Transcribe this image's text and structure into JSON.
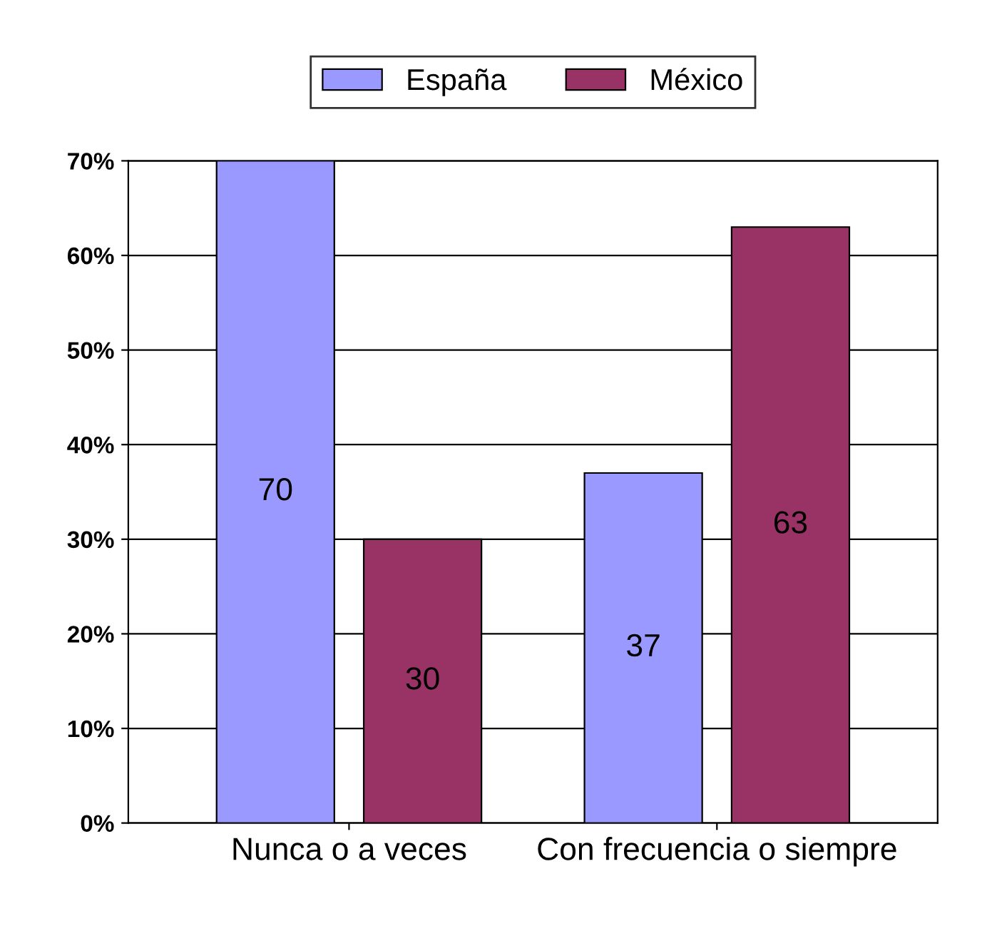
{
  "chart_data": {
    "type": "bar",
    "categories": [
      "Nunca o a veces",
      "Con frecuencia o siempre"
    ],
    "series": [
      {
        "name": "España",
        "color": "#9999ff",
        "values": [
          70,
          37
        ]
      },
      {
        "name": "México",
        "color": "#993366",
        "values": [
          30,
          63
        ]
      }
    ],
    "ylim": [
      0,
      70
    ],
    "yticks": [
      {
        "value": 0,
        "label": "0%"
      },
      {
        "value": 10,
        "label": "10%"
      },
      {
        "value": 20,
        "label": "20%"
      },
      {
        "value": 30,
        "label": "30%"
      },
      {
        "value": 40,
        "label": "40%"
      },
      {
        "value": 50,
        "label": "50%"
      },
      {
        "value": 60,
        "label": "60%"
      },
      {
        "value": 70,
        "label": "70%"
      }
    ],
    "grid": "y",
    "legend": "top",
    "data_labels": true
  }
}
